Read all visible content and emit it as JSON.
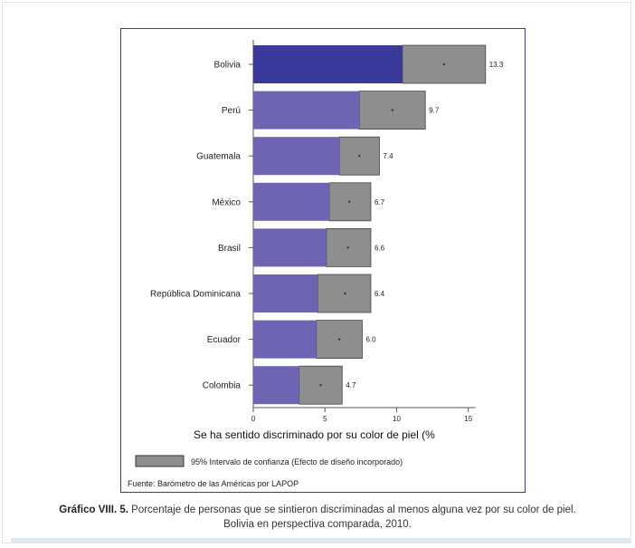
{
  "chart_data": {
    "type": "bar",
    "orientation": "horizontal",
    "categories": [
      "Bolivia",
      "Perú",
      "Guatemala",
      "México",
      "Brasil",
      "República Dominicana",
      "Ecuador",
      "Colombia"
    ],
    "values": [
      13.3,
      9.7,
      7.4,
      6.7,
      6.6,
      6.4,
      6.0,
      4.7
    ],
    "value_labels": [
      "13.3",
      "9.7",
      "7.4",
      "6.7",
      "6.6",
      "6.4",
      "6.0",
      "4.7"
    ],
    "ci_low": [
      10.4,
      7.4,
      6.0,
      5.3,
      5.1,
      4.5,
      4.4,
      3.2
    ],
    "ci_high": [
      16.2,
      12.0,
      8.8,
      8.2,
      8.2,
      8.2,
      7.6,
      6.2
    ],
    "xlabel": "Se ha sentido discriminado por su color de piel (%",
    "xlim": [
      0,
      16.5
    ],
    "xticks": [
      "0",
      "5",
      "10",
      "15"
    ],
    "xtick_values": [
      0,
      5,
      10,
      15
    ],
    "grid": false,
    "colors": {
      "highlight_bar": "#3a3a9a",
      "bar": "#6d64b3",
      "ci_band": "#8e8e8e",
      "frame": "#3b3b8f"
    },
    "legend": {
      "label": "95% Intervalo de confianza (Efecto de diseño incorporado)",
      "placement": "bottom"
    },
    "source": "Fuente: Barómetro de las Américas por LAPOP"
  },
  "caption": {
    "bold": "Gráfico VIII. 5.",
    "line1": " Porcentaje de personas que se sintieron discriminadas al menos alguna vez por su color de piel.",
    "line2": "Bolivia en perspectiva comparada, 2010."
  }
}
